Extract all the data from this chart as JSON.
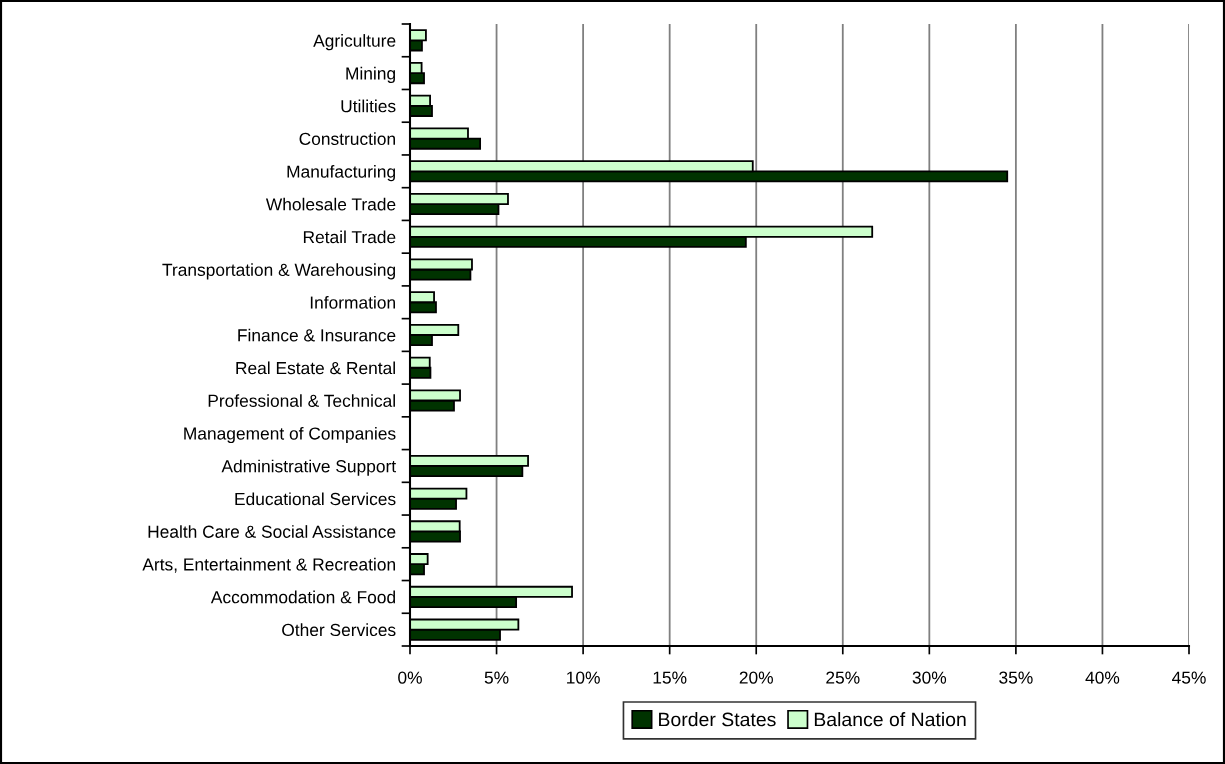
{
  "chart_data": {
    "type": "bar",
    "orientation": "horizontal",
    "categories": [
      "Agriculture",
      "Mining",
      "Utilities",
      "Construction",
      "Manufacturing",
      "Wholesale Trade",
      "Retail Trade",
      "Transportation & Warehousing",
      "Information",
      "Finance & Insurance",
      "Real Estate & Rental",
      "Professional & Technical",
      "Management of Companies",
      "Administrative Support",
      "Educational Services",
      "Health Care & Social Assistance",
      "Arts, Entertainment & Recreation",
      "Accommodation & Food",
      "Other Services"
    ],
    "series": [
      {
        "name": "Border States",
        "color": "#003300",
        "values": [
          0.69,
          0.81,
          1.27,
          4.05,
          34.5,
          5.11,
          19.4,
          3.49,
          1.5,
          1.27,
          1.18,
          2.54,
          null,
          6.49,
          2.66,
          2.89,
          0.81,
          6.13,
          5.2
        ]
      },
      {
        "name": "Balance of Nation",
        "color": "#ccffcc",
        "values": [
          0.92,
          0.67,
          1.16,
          3.35,
          19.8,
          5.66,
          26.7,
          3.58,
          1.39,
          2.79,
          1.14,
          2.89,
          null,
          6.82,
          3.26,
          2.87,
          1.02,
          9.36,
          6.26
        ]
      }
    ],
    "xlim": [
      0,
      45
    ],
    "xticks": [
      {
        "value": 0,
        "label": "0%"
      },
      {
        "value": 5,
        "label": "5%"
      },
      {
        "value": 10,
        "label": "10%"
      },
      {
        "value": 15,
        "label": "15%"
      },
      {
        "value": 20,
        "label": "20%"
      },
      {
        "value": 25,
        "label": "25%"
      },
      {
        "value": 30,
        "label": "30%"
      },
      {
        "value": 35,
        "label": "35%"
      },
      {
        "value": 40,
        "label": "40%"
      },
      {
        "value": 45,
        "label": "45%"
      }
    ],
    "grid": "x",
    "legend": "bottom"
  }
}
